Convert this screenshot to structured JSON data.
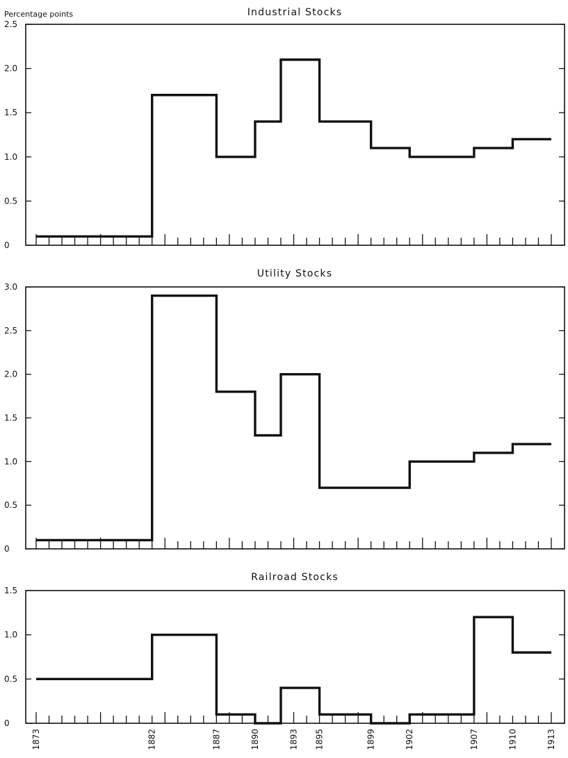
{
  "chart_data": [
    {
      "type": "line",
      "step": true,
      "title": "Industrial Stocks",
      "ylabel": "Percentage points",
      "xlabel": "",
      "xlim": [
        1873,
        1913
      ],
      "ylim": [
        0,
        2.5
      ],
      "yticks": [
        "0",
        "0.5",
        "1.0",
        "1.5",
        "2.0",
        "2.5"
      ],
      "segments": [
        {
          "x_start": 1873,
          "x_end": 1882,
          "y": 0.1
        },
        {
          "x_start": 1882,
          "x_end": 1887,
          "y": 1.7
        },
        {
          "x_start": 1887,
          "x_end": 1890,
          "y": 1.0
        },
        {
          "x_start": 1890,
          "x_end": 1892,
          "y": 1.4
        },
        {
          "x_start": 1892,
          "x_end": 1895,
          "y": 2.1
        },
        {
          "x_start": 1895,
          "x_end": 1899,
          "y": 1.4
        },
        {
          "x_start": 1899,
          "x_end": 1902,
          "y": 1.1
        },
        {
          "x_start": 1902,
          "x_end": 1907,
          "y": 1.0
        },
        {
          "x_start": 1907,
          "x_end": 1910,
          "y": 1.1
        },
        {
          "x_start": 1910,
          "x_end": 1913,
          "y": 1.2
        }
      ]
    },
    {
      "type": "line",
      "step": true,
      "title": "Utility Stocks",
      "ylabel": "",
      "xlabel": "",
      "xlim": [
        1873,
        1913
      ],
      "ylim": [
        0,
        3.0
      ],
      "yticks": [
        "0",
        "0.5",
        "1.0",
        "1.5",
        "2.0",
        "2.5",
        "3.0"
      ],
      "segments": [
        {
          "x_start": 1873,
          "x_end": 1882,
          "y": 0.1
        },
        {
          "x_start": 1882,
          "x_end": 1887,
          "y": 2.9
        },
        {
          "x_start": 1887,
          "x_end": 1890,
          "y": 1.8
        },
        {
          "x_start": 1890,
          "x_end": 1892,
          "y": 1.3
        },
        {
          "x_start": 1892,
          "x_end": 1895,
          "y": 2.0
        },
        {
          "x_start": 1895,
          "x_end": 1902,
          "y": 0.7
        },
        {
          "x_start": 1902,
          "x_end": 1907,
          "y": 1.0
        },
        {
          "x_start": 1907,
          "x_end": 1910,
          "y": 1.1
        },
        {
          "x_start": 1910,
          "x_end": 1913,
          "y": 1.2
        }
      ]
    },
    {
      "type": "line",
      "step": true,
      "title": "Railroad Stocks",
      "ylabel": "",
      "xlabel": "",
      "xlim": [
        1873,
        1913
      ],
      "ylim": [
        0,
        1.5
      ],
      "yticks": [
        "0",
        "0.5",
        "1.0",
        "1.5"
      ],
      "xticks": [
        "1873",
        "1882",
        "1887",
        "1890",
        "1893",
        "1895",
        "1899",
        "1902",
        "1907",
        "1910",
        "1913"
      ],
      "segments": [
        {
          "x_start": 1873,
          "x_end": 1882,
          "y": 0.5
        },
        {
          "x_start": 1882,
          "x_end": 1887,
          "y": 1.0
        },
        {
          "x_start": 1887,
          "x_end": 1890,
          "y": 0.1
        },
        {
          "x_start": 1890,
          "x_end": 1892,
          "y": 0.0
        },
        {
          "x_start": 1892,
          "x_end": 1895,
          "y": 0.4
        },
        {
          "x_start": 1895,
          "x_end": 1899,
          "y": 0.1
        },
        {
          "x_start": 1899,
          "x_end": 1902,
          "y": 0.0
        },
        {
          "x_start": 1902,
          "x_end": 1907,
          "y": 0.1
        },
        {
          "x_start": 1907,
          "x_end": 1910,
          "y": 1.2
        },
        {
          "x_start": 1910,
          "x_end": 1913,
          "y": 0.8
        }
      ]
    }
  ],
  "colors": {
    "line": "#111111",
    "background": "#ffffff"
  }
}
